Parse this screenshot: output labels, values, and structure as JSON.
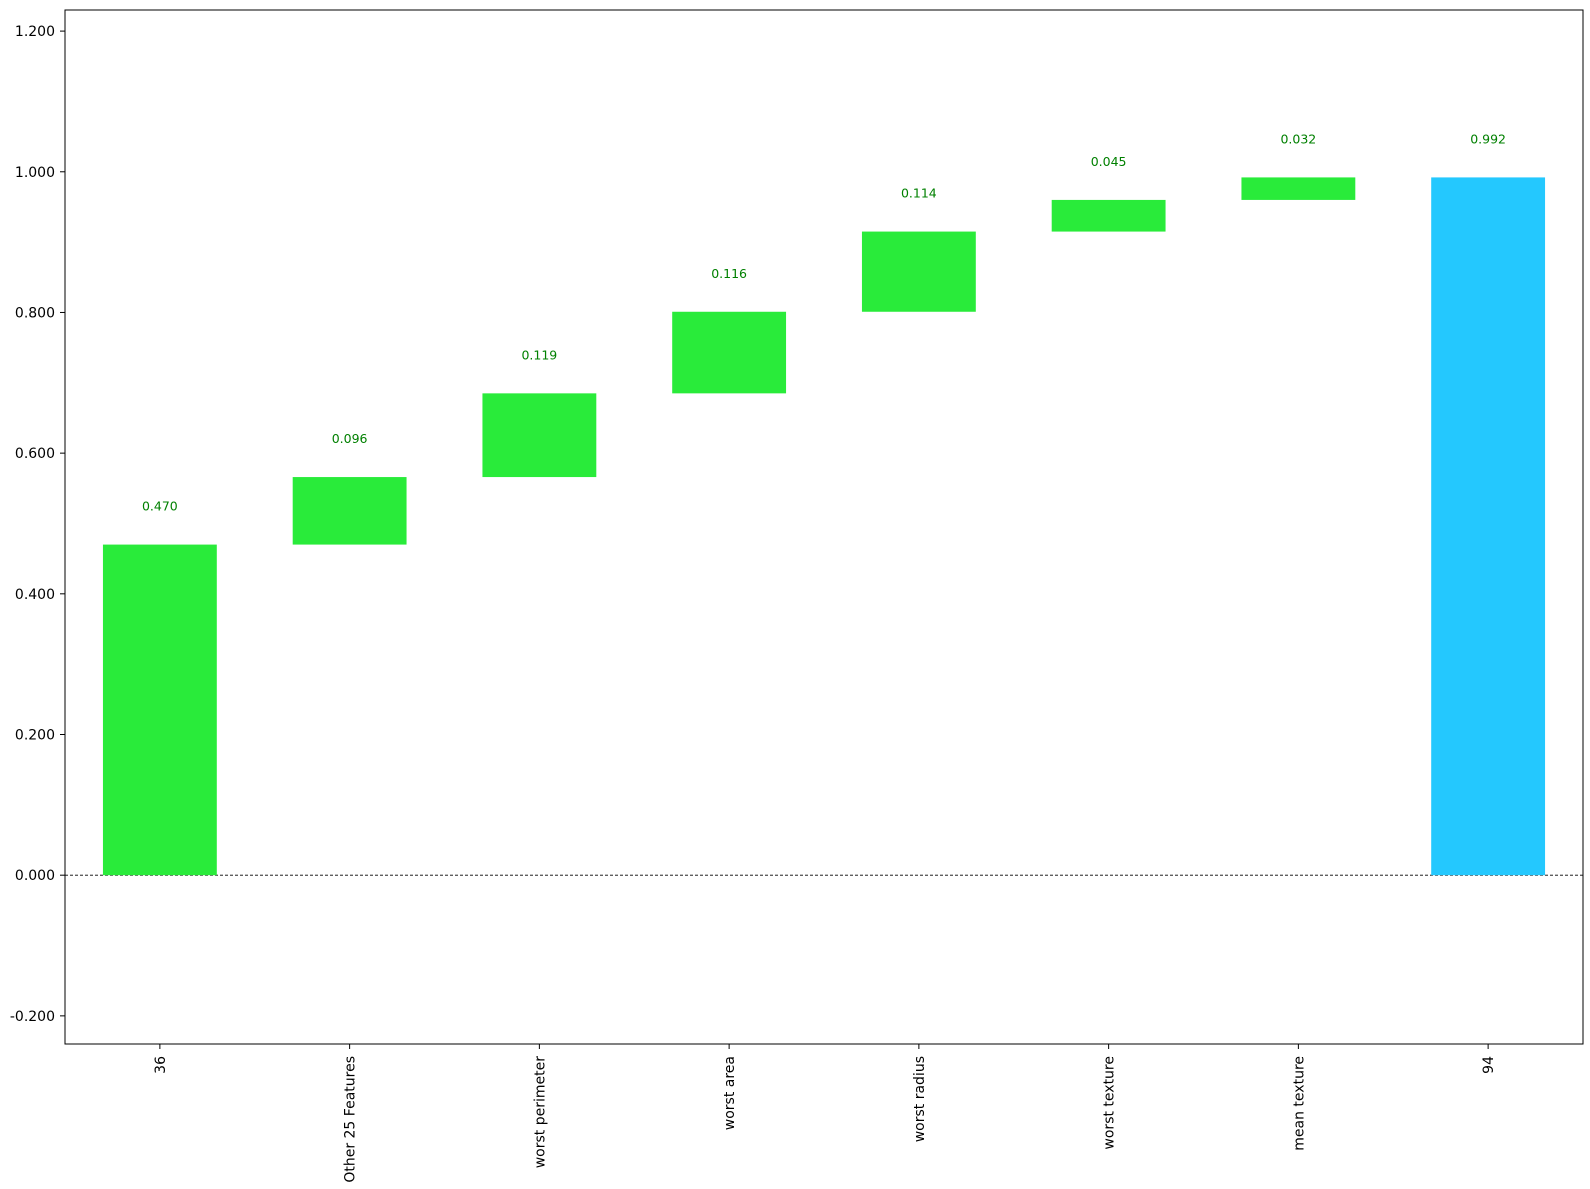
{
  "chart_data": {
    "type": "bar",
    "subtype": "waterfall",
    "title": "",
    "xlabel": "",
    "ylabel": "",
    "categories": [
      "36",
      "Other 25 Features",
      "worst perimeter",
      "worst area",
      "worst radius",
      "worst texture",
      "mean texture",
      "94"
    ],
    "values": [
      0.47,
      0.096,
      0.119,
      0.116,
      0.114,
      0.045,
      0.032,
      0.992
    ],
    "data_labels": [
      "0.470",
      "0.096",
      "0.119",
      "0.116",
      "0.114",
      "0.045",
      "0.032",
      "0.992"
    ],
    "bar_kinds": [
      "increase",
      "increase",
      "increase",
      "increase",
      "increase",
      "increase",
      "increase",
      "total"
    ],
    "ylim": [
      -0.24,
      1.23
    ],
    "yticks": [
      -0.2,
      0,
      0.2,
      0.4,
      0.6,
      0.8,
      1.0,
      1.2
    ],
    "ytick_labels": [
      "-0.200",
      "0.000",
      "0.200",
      "0.400",
      "0.600",
      "0.800",
      "1.000",
      "1.200"
    ],
    "grid": false,
    "baseline": 0,
    "colors": {
      "increase": "#29eb3a",
      "total": "#24c8fe",
      "label": "#008000",
      "axis": "#000000"
    }
  }
}
